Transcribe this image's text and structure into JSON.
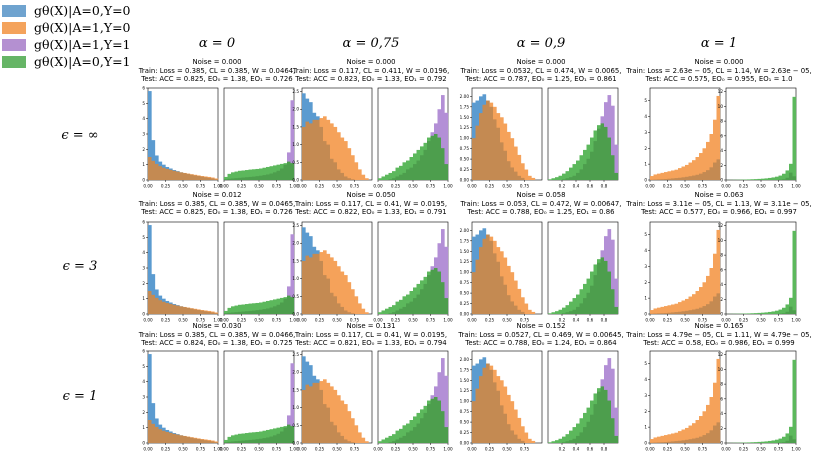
{
  "legend": [
    {
      "label": "gθ(X)|A=0,Y=0",
      "color": "#6fa3cf"
    },
    {
      "label": "gθ(X)|A=1,Y=0",
      "color": "#f4a35c"
    },
    {
      "label": "gθ(X)|A=1,Y=1",
      "color": "#b490d1"
    },
    {
      "label": "gθ(X)|A=0,Y=1",
      "color": "#66b566"
    }
  ],
  "columns": [
    "α = 0",
    "α = 0,75",
    "α = 0,9",
    "α = 1"
  ],
  "rows": [
    "ϵ = ∞",
    "ϵ = 3",
    "ϵ = 1"
  ],
  "colors": {
    "a0y0": "#5b9bd0",
    "a1y0": "#f5a25a",
    "a1y1": "#b38fd6",
    "a0y1": "#5cb85c",
    "overlap_neg": "#c48a52",
    "overlap_pos": "#4d9e4d"
  },
  "panels": [
    [
      {
        "noise": "Noise = 0.000",
        "train": "Train: Loss = 0.385, CL = 0.385, W = 0.0464,",
        "test": "Test: ACC = 0.825, EO₀ = 1.38, EO₁ = 0.726"
      },
      {
        "noise": "Noise = 0.000",
        "train": "Train: Loss = 0.117, CL = 0.411, W = 0.0196,",
        "test": "Test: ACC = 0.823, EO₀ = 1.33, EO₁ = 0.792"
      },
      {
        "noise": "Noise = 0.000",
        "train": "Train: Loss = 0.0532, CL = 0.474, W = 0.0065,",
        "test": "Test: ACC = 0.787, EO₀ = 1.25, EO₁ = 0.861"
      },
      {
        "noise": "Noise = 0.000",
        "train": "Train: Loss = 2.63e − 05, CL = 1.14, W = 2.63e − 05,",
        "test": "Test: ACC = 0.575, EO₀ = 0.955, EO₁ = 1.0"
      }
    ],
    [
      {
        "noise": "Noise = 0.012",
        "train": "Train: Loss = 0.385, CL = 0.385, W = 0.0465,",
        "test": "Test: ACC = 0.825, EO₀ = 1.38, EO₁ = 0.726"
      },
      {
        "noise": "Noise = 0.050",
        "train": "Train: Loss = 0.117, CL = 0.41, W = 0.0195,",
        "test": "Test: ACC = 0.822, EO₀ = 1.33, EO₁ = 0.791"
      },
      {
        "noise": "Noise = 0.058",
        "train": "Train: Loss = 0.053, CL = 0.472, W = 0.00647,",
        "test": "Test: ACC = 0.788, EO₀ = 1.25, EO₁ = 0.86"
      },
      {
        "noise": "Noise = 0.063",
        "train": "Train: Loss = 3.11e − 05, CL = 1.13, W = 3.11e − 05,",
        "test": "Test: ACC = 0.577, EO₀ = 0.966, EO₁ = 0.997"
      }
    ],
    [
      {
        "noise": "Noise = 0.030",
        "train": "Train: Loss = 0.385, CL = 0.385, W = 0.0466,",
        "test": "Test: ACC = 0.824, EO₀ = 1.38, EO₁ = 0.725"
      },
      {
        "noise": "Noise = 0.131",
        "train": "Train: Loss = 0.117, CL = 0.41, W = 0.0195,",
        "test": "Test: ACC = 0.821, EO₀ = 1.33, EO₁ = 0.794"
      },
      {
        "noise": "Noise = 0.152",
        "train": "Train: Loss = 0.0527, CL = 0.469, W = 0.00645,",
        "test": "Test: ACC = 0.788, EO₀ = 1.24, EO₁ = 0.864"
      },
      {
        "noise": "Noise = 0.165",
        "train": "Train: Loss = 4.79e − 05, CL = 1.11, W = 4.79e − 05,",
        "test": "Test: ACC = 0.58, EO₀ = 0.986, EO₁ = 0.999"
      }
    ]
  ],
  "chart_data": {
    "type": "histogram-grid",
    "title": "",
    "xlim": [
      0,
      1
    ],
    "neg": [
      {
        "ylim": [
          0,
          6
        ],
        "yticks": [
          "0",
          "1",
          "2",
          "3",
          "4",
          "5",
          "6"
        ],
        "xticks": [
          "0.00",
          "0.25",
          "0.50",
          "0.75",
          "1.00"
        ],
        "a0y0": [
          5.8,
          2.6,
          1.6,
          1.2,
          1.0,
          0.85,
          0.75,
          0.65,
          0.58,
          0.5,
          0.45,
          0.4,
          0.35,
          0.3,
          0.26,
          0.22,
          0.18,
          0.14,
          0.1,
          0.05
        ],
        "a1y0": [
          1.5,
          1.25,
          1.05,
          0.9,
          0.8,
          0.72,
          0.66,
          0.6,
          0.55,
          0.5,
          0.46,
          0.42,
          0.38,
          0.34,
          0.3,
          0.26,
          0.23,
          0.2,
          0.16,
          0.1
        ]
      },
      {
        "ylim": [
          0,
          2.6
        ],
        "yticks": [
          "0.0",
          "0.5",
          "1.0",
          "1.5",
          "2.0",
          "2.5"
        ],
        "xticks": [
          "0.00",
          "0.25",
          "0.50",
          "0.75"
        ],
        "a0y0": [
          2.45,
          2.3,
          2.2,
          1.9,
          1.8,
          1.5,
          1.1,
          1.0,
          0.6,
          0.5,
          0.3,
          0.2,
          0.1,
          0.05,
          0.02,
          0.0,
          0.0,
          0.0,
          0.0,
          0.0
        ],
        "a1y0": [
          1.5,
          1.65,
          1.6,
          1.7,
          1.7,
          1.75,
          1.8,
          1.7,
          1.6,
          1.5,
          1.35,
          1.2,
          1.1,
          0.9,
          0.7,
          0.5,
          0.3,
          0.15,
          0.05,
          0.0
        ]
      },
      {
        "ylim": [
          0,
          2.2
        ],
        "yticks": [
          "0.00",
          "0.25",
          "0.50",
          "0.75",
          "1.00",
          "1.25",
          "1.50",
          "1.75",
          "2.00"
        ],
        "xticks": [
          "0.00",
          "0.25",
          "0.50",
          "0.75"
        ],
        "a0y0": [
          1.85,
          1.9,
          2.0,
          2.05,
          1.9,
          1.75,
          1.45,
          1.25,
          0.9,
          0.7,
          0.45,
          0.3,
          0.2,
          0.1,
          0.05,
          0.0,
          0.0,
          0.0,
          0.0,
          0.0
        ],
        "a1y0": [
          1.0,
          1.3,
          1.6,
          1.8,
          1.9,
          1.85,
          1.75,
          1.6,
          1.5,
          1.35,
          1.15,
          1.0,
          0.8,
          0.6,
          0.4,
          0.25,
          0.1,
          0.05,
          0.0,
          0.0
        ]
      },
      {
        "ylim": [
          0,
          5.8
        ],
        "yticks": [
          "0",
          "1",
          "2",
          "3",
          "4",
          "5"
        ],
        "xticks": [
          "0.00",
          "0.25",
          "0.50",
          "0.75"
        ],
        "a0y0": [
          0.02,
          0.03,
          0.04,
          0.05,
          0.06,
          0.08,
          0.1,
          0.12,
          0.14,
          0.17,
          0.2,
          0.24,
          0.28,
          0.33,
          0.4,
          0.5,
          0.62,
          0.8,
          1.1,
          1.3
        ],
        "a1y0": [
          0.25,
          0.35,
          0.4,
          0.45,
          0.5,
          0.55,
          0.6,
          0.65,
          0.75,
          0.85,
          0.95,
          1.1,
          1.25,
          1.45,
          1.7,
          2.0,
          2.4,
          2.9,
          3.8,
          5.3
        ]
      }
    ],
    "pos": [
      {
        "ylim": [
          0,
          6
        ],
        "yticks": [],
        "xticks": [
          "0.00",
          "0.25",
          "0.50",
          "0.75",
          "1.00"
        ],
        "a1y1": [
          0.05,
          0.08,
          0.1,
          0.12,
          0.14,
          0.16,
          0.18,
          0.2,
          0.22,
          0.25,
          0.28,
          0.32,
          0.36,
          0.42,
          0.5,
          0.6,
          0.75,
          1.0,
          1.8,
          5.2
        ],
        "a0y1": [
          0.2,
          0.4,
          0.5,
          0.55,
          0.6,
          0.62,
          0.65,
          0.68,
          0.7,
          0.72,
          0.75,
          0.8,
          0.85,
          0.9,
          0.95,
          1.0,
          1.05,
          1.1,
          1.2,
          1.1
        ]
      },
      {
        "ylim": [
          0,
          2.6
        ],
        "yticks": [],
        "xticks": [
          "0.00",
          "0.25",
          "0.50",
          "0.75",
          "1.00"
        ],
        "a1y1": [
          0.0,
          0.0,
          0.0,
          0.02,
          0.05,
          0.1,
          0.15,
          0.2,
          0.3,
          0.35,
          0.45,
          0.55,
          0.7,
          0.85,
          1.1,
          1.35,
          1.6,
          2.0,
          2.4,
          1.9
        ],
        "a0y1": [
          0.05,
          0.1,
          0.15,
          0.2,
          0.25,
          0.35,
          0.4,
          0.5,
          0.55,
          0.65,
          0.75,
          0.85,
          0.95,
          1.05,
          1.2,
          1.25,
          1.3,
          1.2,
          0.9,
          0.45
        ]
      },
      {
        "ylim": [
          0,
          2.6
        ],
        "yticks": [],
        "xticks": [
          "0.2",
          "0.4",
          "0.6",
          "0.8"
        ],
        "a1y1": [
          0.0,
          0.0,
          0.0,
          0.0,
          0.02,
          0.05,
          0.08,
          0.12,
          0.2,
          0.3,
          0.45,
          0.6,
          0.8,
          1.1,
          1.45,
          1.8,
          2.2,
          2.4,
          2.1,
          1.0
        ],
        "a0y1": [
          0.02,
          0.05,
          0.08,
          0.12,
          0.18,
          0.25,
          0.35,
          0.45,
          0.55,
          0.7,
          0.85,
          1.0,
          1.2,
          1.4,
          1.55,
          1.6,
          1.5,
          1.2,
          0.7,
          0.2
        ]
      },
      {
        "ylim": [
          0,
          12.5
        ],
        "yticks": [
          "0",
          "2",
          "4",
          "6",
          "8",
          "10",
          "12"
        ],
        "xticks": [
          "0.00",
          "0.25",
          "0.50",
          "0.75",
          "1.00"
        ],
        "a1y1": [
          0.0,
          0.0,
          0.0,
          0.0,
          0.0,
          0.0,
          0.0,
          0.0,
          0.0,
          0.0,
          0.0,
          0.0,
          0.0,
          0.0,
          0.0,
          0.05,
          0.1,
          0.3,
          1.0,
          0.5
        ],
        "a0y1": [
          0.01,
          0.02,
          0.03,
          0.04,
          0.05,
          0.06,
          0.08,
          0.1,
          0.12,
          0.15,
          0.18,
          0.22,
          0.28,
          0.35,
          0.45,
          0.6,
          0.85,
          1.3,
          2.2,
          11.3
        ]
      }
    ]
  }
}
